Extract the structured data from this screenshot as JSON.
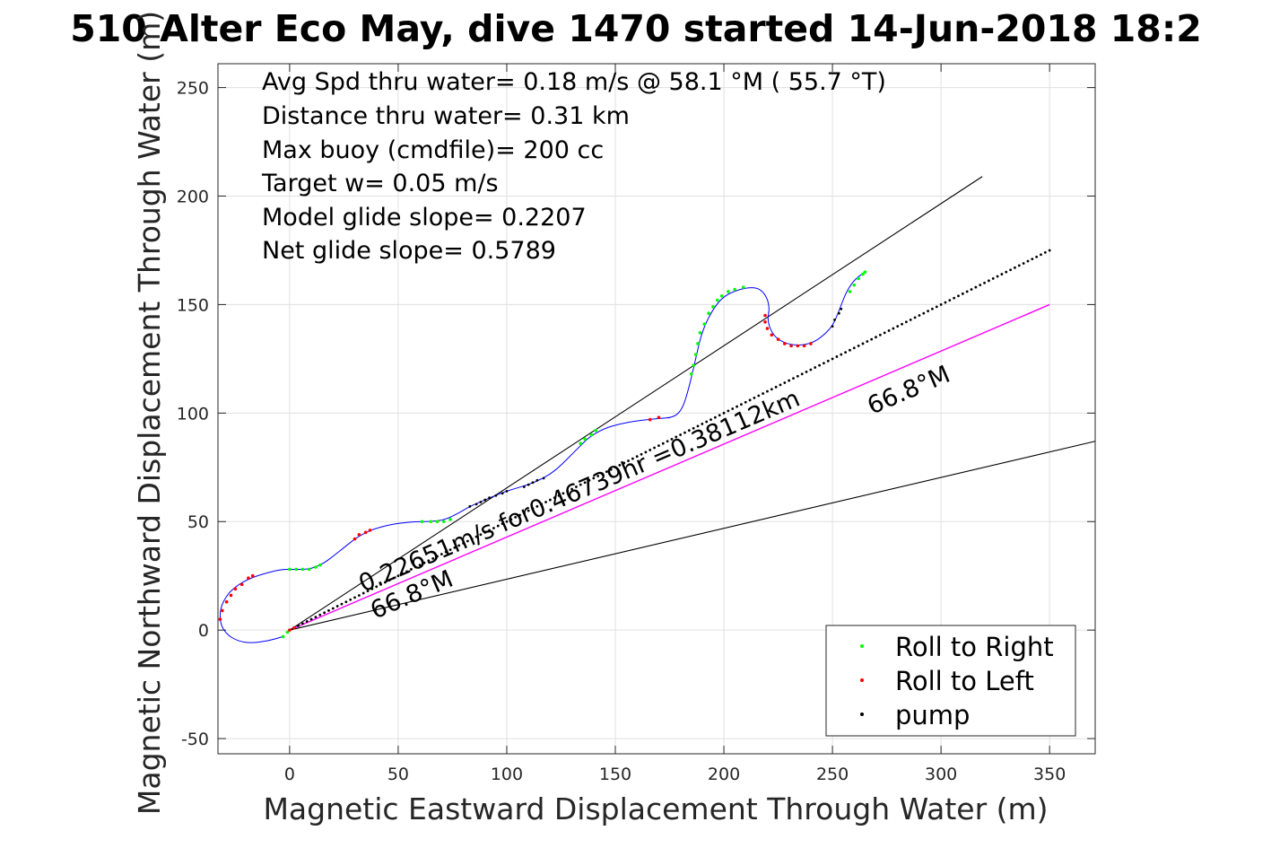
{
  "chart_data": {
    "type": "scatter",
    "title": "510 Alter Eco May, dive 1470 started 14-Jun-2018 18:2",
    "xlabel": "Magnetic Eastward Displacement Through Water (m)",
    "ylabel": "Magnetic Northward Displacement Through Water (m)",
    "xlim": [
      -33,
      371
    ],
    "ylim": [
      -57,
      261
    ],
    "xticks": [
      0,
      50,
      100,
      150,
      200,
      250,
      300,
      350
    ],
    "yticks": [
      -50,
      0,
      50,
      100,
      150,
      200,
      250
    ],
    "grid": true,
    "legend_position": "bottom-right",
    "annotations": [
      "Avg Spd thru water=  0.18 m/s @  58.1 °M ( 55.7 °T)",
      "Distance thru water=  0.31 km",
      "Max buoy (cmdfile)= 200 cc",
      "Target w= 0.05 m/s",
      "Model glide slope= 0.2207",
      "Net glide slope= 0.5789"
    ],
    "rotated_labels": {
      "speed": "0.22651m/s for0.46739hr =0.38112km",
      "heading_near": "66.8°M",
      "heading_far": "66.8°M"
    },
    "colors": {
      "track": "#0000ff",
      "roll_right": "#00ff00",
      "roll_left": "#ff0000",
      "pump": "#000000",
      "heading_line": "#ff00ff",
      "glide_lines": "#000000",
      "grid": "#e0e0e0"
    },
    "track": [
      [
        -3,
        -3
      ],
      [
        -10,
        -5
      ],
      [
        -18,
        -6
      ],
      [
        -24,
        -5
      ],
      [
        -29,
        -2
      ],
      [
        -32,
        3
      ],
      [
        -32,
        10
      ],
      [
        -29,
        16
      ],
      [
        -25,
        20
      ],
      [
        -20,
        23
      ],
      [
        -15,
        25
      ],
      [
        -8,
        27
      ],
      [
        -3,
        28
      ],
      [
        0,
        28
      ],
      [
        4,
        28
      ],
      [
        8,
        28
      ],
      [
        12,
        29
      ],
      [
        16,
        31
      ],
      [
        20,
        34
      ],
      [
        25,
        38
      ],
      [
        30,
        42
      ],
      [
        35,
        45
      ],
      [
        40,
        47
      ],
      [
        48,
        49
      ],
      [
        58,
        50
      ],
      [
        66,
        50
      ],
      [
        72,
        51
      ],
      [
        78,
        54
      ],
      [
        83,
        57
      ],
      [
        90,
        60
      ],
      [
        97,
        63
      ],
      [
        103,
        65
      ],
      [
        110,
        67
      ],
      [
        117,
        70
      ],
      [
        123,
        74
      ],
      [
        128,
        79
      ],
      [
        133,
        84
      ],
      [
        138,
        89
      ],
      [
        145,
        93
      ],
      [
        152,
        95
      ],
      [
        160,
        96.5
      ],
      [
        170,
        97.5
      ],
      [
        177,
        98
      ],
      [
        181,
        102
      ],
      [
        184,
        112
      ],
      [
        187,
        125
      ],
      [
        190,
        138
      ],
      [
        195,
        148
      ],
      [
        200,
        154
      ],
      [
        207,
        157
      ],
      [
        213,
        158
      ],
      [
        217,
        157
      ],
      [
        220,
        153
      ],
      [
        221,
        148
      ],
      [
        220,
        143
      ],
      [
        222,
        137
      ],
      [
        226,
        133
      ],
      [
        233,
        131
      ],
      [
        240,
        132
      ],
      [
        245,
        135
      ],
      [
        250,
        140
      ],
      [
        253,
        147
      ],
      [
        256,
        155
      ],
      [
        259,
        160
      ],
      [
        262,
        163
      ],
      [
        265,
        165
      ]
    ],
    "roll_right": [
      [
        -3,
        -3
      ],
      [
        -1,
        -1
      ],
      [
        0,
        28
      ],
      [
        3,
        28
      ],
      [
        6,
        28
      ],
      [
        9,
        28
      ],
      [
        12,
        29
      ],
      [
        14,
        30
      ],
      [
        61,
        50
      ],
      [
        65,
        50
      ],
      [
        68,
        50
      ],
      [
        71,
        50
      ],
      [
        74,
        51
      ],
      [
        134,
        86
      ],
      [
        136,
        88
      ],
      [
        139,
        90
      ],
      [
        141,
        92
      ],
      [
        185,
        118
      ],
      [
        186,
        122
      ],
      [
        187,
        127
      ],
      [
        188,
        132
      ],
      [
        189,
        137
      ],
      [
        191,
        141
      ],
      [
        193,
        146
      ],
      [
        195,
        149
      ],
      [
        197,
        152
      ],
      [
        199,
        154
      ],
      [
        202,
        156
      ],
      [
        205,
        157
      ],
      [
        209,
        158
      ],
      [
        258,
        156
      ],
      [
        260,
        159
      ],
      [
        262,
        162
      ],
      [
        264,
        164
      ],
      [
        265,
        165
      ]
    ],
    "roll_left": [
      [
        -32,
        5
      ],
      [
        -31,
        9
      ],
      [
        -29,
        13
      ],
      [
        -27,
        16
      ],
      [
        -25,
        19
      ],
      [
        -22,
        21
      ],
      [
        -19,
        24
      ],
      [
        -17,
        25
      ],
      [
        0,
        0
      ],
      [
        2,
        1
      ],
      [
        30,
        42
      ],
      [
        32,
        44
      ],
      [
        35,
        45
      ],
      [
        37,
        46
      ],
      [
        166,
        97
      ],
      [
        170,
        98
      ],
      [
        219,
        145
      ],
      [
        219,
        142
      ],
      [
        220,
        139
      ],
      [
        222,
        136
      ],
      [
        225,
        134
      ],
      [
        228,
        132
      ],
      [
        231,
        131
      ],
      [
        234,
        131
      ],
      [
        237,
        131
      ],
      [
        240,
        132
      ]
    ],
    "pump": [
      [
        0,
        0
      ],
      [
        2,
        1
      ],
      [
        4,
        2
      ],
      [
        6,
        3
      ],
      [
        8,
        4
      ],
      [
        10,
        5
      ],
      [
        12,
        6
      ],
      [
        14,
        7
      ],
      [
        16,
        8
      ],
      [
        18,
        9
      ],
      [
        20,
        10
      ],
      [
        22,
        11
      ],
      [
        24,
        12
      ],
      [
        26,
        13
      ],
      [
        28,
        14
      ],
      [
        30,
        15
      ],
      [
        32,
        16
      ],
      [
        34,
        17
      ],
      [
        36,
        18
      ],
      [
        38,
        19
      ],
      [
        40,
        20
      ],
      [
        42,
        21
      ],
      [
        44,
        22
      ],
      [
        46,
        23
      ],
      [
        48,
        24
      ],
      [
        50,
        25
      ],
      [
        52,
        26
      ],
      [
        54,
        27
      ],
      [
        56,
        28
      ],
      [
        58,
        29
      ],
      [
        60,
        30
      ],
      [
        62,
        31
      ],
      [
        64,
        32
      ],
      [
        66,
        33
      ],
      [
        68,
        34
      ],
      [
        70,
        35
      ],
      [
        72,
        36
      ],
      [
        74,
        37
      ],
      [
        76,
        38
      ],
      [
        78,
        39
      ],
      [
        80,
        40
      ],
      [
        82,
        41
      ],
      [
        84,
        42
      ],
      [
        86,
        43
      ],
      [
        88,
        44
      ],
      [
        90,
        45
      ],
      [
        92,
        46
      ],
      [
        94,
        47
      ],
      [
        96,
        48
      ],
      [
        98,
        49
      ],
      [
        100,
        50
      ],
      [
        102,
        51
      ],
      [
        104,
        52
      ],
      [
        106,
        53
      ],
      [
        108,
        54
      ],
      [
        110,
        55
      ],
      [
        112,
        56
      ],
      [
        114,
        57
      ],
      [
        116,
        58
      ],
      [
        118,
        59
      ],
      [
        120,
        60
      ],
      [
        122,
        61
      ],
      [
        124,
        62
      ],
      [
        126,
        63
      ],
      [
        128,
        64
      ],
      [
        130,
        65
      ],
      [
        132,
        66
      ],
      [
        134,
        67
      ],
      [
        136,
        68
      ],
      [
        138,
        69
      ],
      [
        140,
        70
      ],
      [
        142,
        71
      ],
      [
        144,
        72
      ],
      [
        146,
        73
      ],
      [
        148,
        74
      ],
      [
        150,
        75
      ],
      [
        152,
        76
      ],
      [
        154,
        77
      ],
      [
        156,
        78
      ],
      [
        158,
        79
      ],
      [
        160,
        80
      ],
      [
        162,
        81
      ],
      [
        164,
        82
      ],
      [
        166,
        83
      ],
      [
        168,
        84
      ],
      [
        170,
        85
      ],
      [
        172,
        86
      ],
      [
        174,
        87
      ],
      [
        176,
        88
      ],
      [
        178,
        89
      ],
      [
        180,
        90
      ],
      [
        182,
        91
      ],
      [
        184,
        92
      ],
      [
        186,
        93
      ],
      [
        188,
        94
      ],
      [
        190,
        95
      ],
      [
        192,
        96
      ],
      [
        194,
        97
      ],
      [
        196,
        98
      ],
      [
        198,
        99
      ],
      [
        200,
        100
      ],
      [
        202,
        101
      ],
      [
        204,
        102
      ],
      [
        206,
        103
      ],
      [
        208,
        104
      ],
      [
        210,
        105
      ],
      [
        212,
        106
      ],
      [
        214,
        107
      ],
      [
        216,
        108
      ],
      [
        218,
        109
      ],
      [
        220,
        110
      ],
      [
        222,
        111
      ],
      [
        224,
        112
      ],
      [
        226,
        113
      ],
      [
        228,
        114
      ],
      [
        230,
        115
      ],
      [
        232,
        116
      ],
      [
        234,
        117
      ],
      [
        236,
        118
      ],
      [
        238,
        119
      ],
      [
        240,
        120
      ],
      [
        242,
        121
      ],
      [
        244,
        122
      ],
      [
        246,
        123
      ],
      [
        248,
        124
      ],
      [
        250,
        125
      ],
      [
        252,
        126
      ],
      [
        254,
        127
      ],
      [
        256,
        128
      ],
      [
        258,
        129
      ],
      [
        260,
        130
      ],
      [
        262,
        131
      ],
      [
        264,
        132
      ],
      [
        266,
        133
      ],
      [
        268,
        134
      ],
      [
        270,
        135
      ],
      [
        272,
        136
      ],
      [
        274,
        137
      ],
      [
        276,
        138
      ],
      [
        278,
        139
      ],
      [
        280,
        140
      ],
      [
        282,
        141
      ],
      [
        284,
        142
      ],
      [
        286,
        143
      ],
      [
        288,
        144
      ],
      [
        290,
        145
      ],
      [
        292,
        146
      ],
      [
        294,
        147
      ],
      [
        296,
        148
      ],
      [
        298,
        149
      ],
      [
        300,
        150
      ],
      [
        302,
        151
      ],
      [
        304,
        152
      ],
      [
        306,
        153
      ],
      [
        308,
        154
      ],
      [
        310,
        155
      ],
      [
        312,
        156
      ],
      [
        314,
        157
      ],
      [
        316,
        158
      ],
      [
        318,
        159
      ],
      [
        320,
        160
      ],
      [
        322,
        161
      ],
      [
        324,
        162
      ],
      [
        326,
        163
      ],
      [
        328,
        164
      ],
      [
        330,
        165
      ],
      [
        332,
        166
      ],
      [
        334,
        167
      ],
      [
        336,
        168
      ],
      [
        338,
        169
      ],
      [
        340,
        170
      ],
      [
        342,
        171
      ],
      [
        344,
        172
      ],
      [
        346,
        173
      ],
      [
        348,
        174
      ],
      [
        350,
        175
      ],
      [
        83,
        57
      ],
      [
        86,
        58
      ],
      [
        88,
        59
      ],
      [
        90,
        60
      ],
      [
        92,
        61
      ],
      [
        95,
        62
      ],
      [
        98,
        63
      ],
      [
        100,
        64
      ],
      [
        108,
        66
      ],
      [
        110,
        67
      ],
      [
        112,
        68
      ],
      [
        114,
        69
      ],
      [
        117,
        70
      ],
      [
        250,
        140
      ],
      [
        251,
        143
      ],
      [
        253,
        146
      ],
      [
        254,
        148
      ]
    ],
    "lines": {
      "heading": [
        [
          0,
          0
        ],
        [
          350,
          150
        ]
      ],
      "glide_upper": [
        [
          0,
          0
        ],
        [
          319,
          209
        ]
      ],
      "glide_lower": [
        [
          0,
          0
        ],
        [
          371,
          87
        ]
      ]
    },
    "legend": [
      {
        "label": "Roll to Right",
        "color": "#00ff00"
      },
      {
        "label": "Roll to Left",
        "color": "#ff0000"
      },
      {
        "label": "pump",
        "color": "#000000"
      }
    ]
  }
}
